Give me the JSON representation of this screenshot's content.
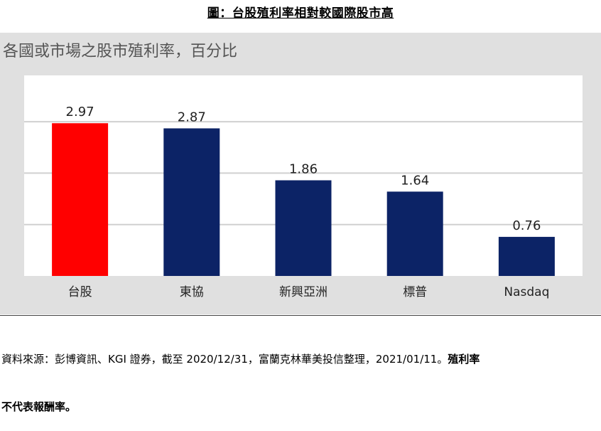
{
  "header": {
    "figure_title": "圖：台股殖利率相對較國際股市高"
  },
  "chart_data": {
    "type": "bar",
    "title": "各國或市場之股市殖利率，百分比",
    "categories": [
      "台股",
      "東協",
      "新興亞洲",
      "標普",
      "Nasdaq"
    ],
    "values": [
      2.97,
      2.87,
      1.86,
      1.64,
      0.76
    ],
    "value_labels": [
      "2.97",
      "2.87",
      "1.86",
      "1.64",
      "0.76"
    ],
    "bar_colors": [
      "#ff0000",
      "#0c2366",
      "#0c2366",
      "#0c2366",
      "#0c2366"
    ],
    "ylim": [
      0,
      3.9
    ],
    "gridlines": [
      1,
      2,
      3
    ],
    "grid": true,
    "plot_background": "#ffffff",
    "outer_background": "#e0e0e0",
    "xlabel": "",
    "ylabel": ""
  },
  "footer": {
    "source_text": "資料來源：彭博資訊、KGI 證券，截至 2020/12/31，富蘭克林華美投信整理，2021/01/11。",
    "note_line1": "殖利率",
    "note_line2": "不代表報酬率。"
  }
}
